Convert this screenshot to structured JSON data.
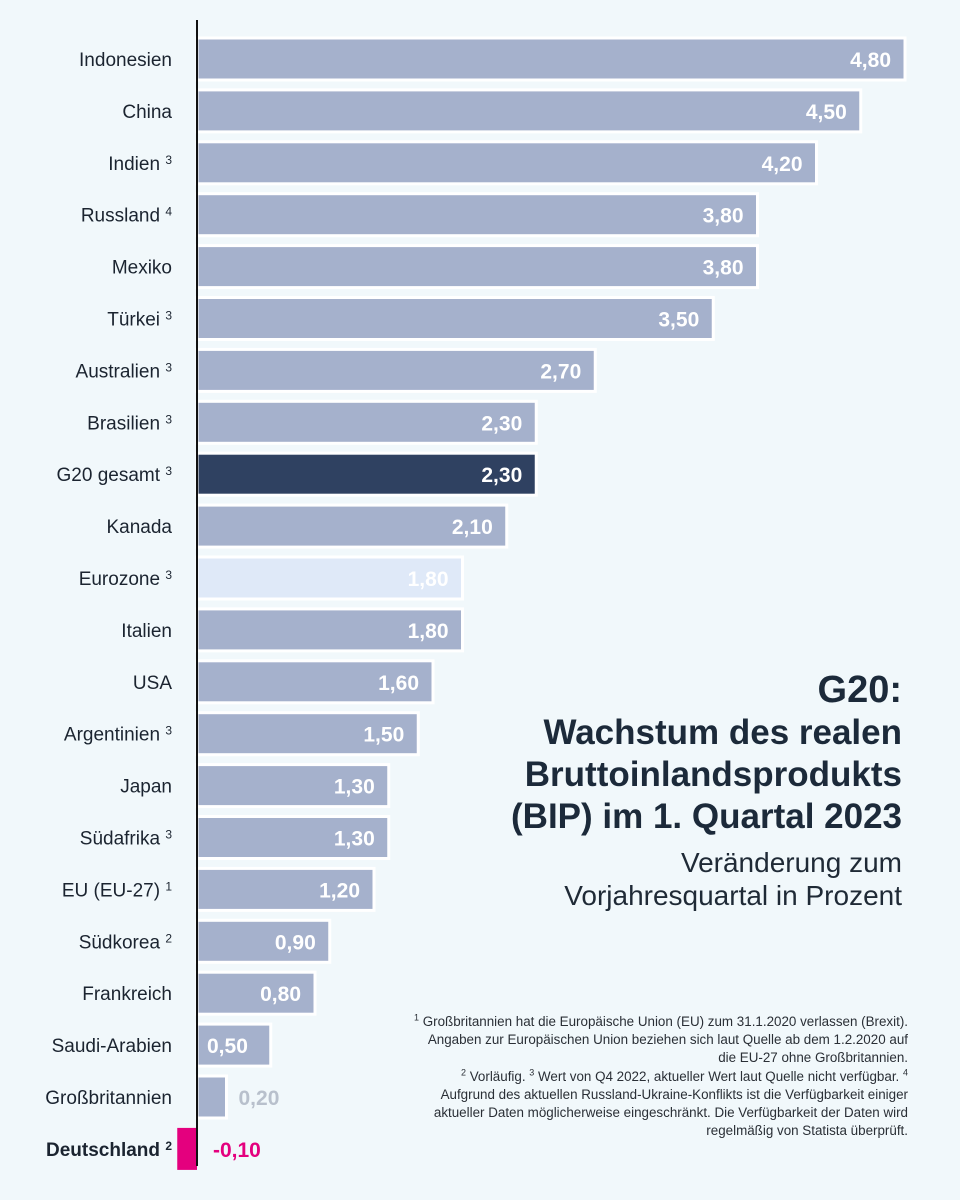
{
  "chart_data": {
    "type": "bar",
    "orientation": "horizontal",
    "categories": [
      "Indonesien",
      "China",
      "Indien",
      "Russland",
      "Mexiko",
      "Türkei",
      "Australien",
      "Brasilien",
      "G20 gesamt",
      "Kanada",
      "Eurozone",
      "Italien",
      "USA",
      "Argentinien",
      "Japan",
      "Südafrika",
      "EU (EU-27)",
      "Südkorea",
      "Frankreich",
      "Saudi-Arabien",
      "Großbritannien",
      "Deutschland"
    ],
    "footnote_marks": [
      "",
      "",
      "3",
      "4",
      "",
      "3",
      "3",
      "3",
      "3",
      "",
      "3",
      "",
      "",
      "3",
      "",
      "3",
      "1",
      "2",
      "",
      "",
      "",
      "2"
    ],
    "values": [
      4.8,
      4.5,
      4.2,
      3.8,
      3.8,
      3.5,
      2.7,
      2.3,
      2.3,
      2.1,
      1.8,
      1.8,
      1.6,
      1.5,
      1.3,
      1.3,
      1.2,
      0.9,
      0.8,
      0.5,
      0.2,
      -0.1
    ],
    "value_labels": [
      "4,80",
      "4,50",
      "4,20",
      "3,80",
      "3,80",
      "3,50",
      "2,70",
      "2,30",
      "2,30",
      "2,10",
      "1,80",
      "1,80",
      "1,60",
      "1,50",
      "1,30",
      "1,30",
      "1,20",
      "0,90",
      "0,80",
      "0,50",
      "0,20",
      "-0,10"
    ],
    "highlight": {
      "G20 gesamt": "dark",
      "Eurozone": "light",
      "Deutschland": "negative"
    },
    "colors": {
      "bar": "#a5b1cc",
      "bar_border": "#ffffff",
      "dark": "#2f4161",
      "light": "#dfe9f8",
      "negative": "#e4007e",
      "axis": "#111111"
    },
    "xlim": [
      -0.1,
      4.8
    ],
    "grid": false,
    "legend": "none"
  },
  "title": {
    "line1": "G20:",
    "line2": "Wachstum des realen",
    "line3": "Bruttoinlandsprodukts",
    "line4": "(BIP) im 1. Quartal 2023"
  },
  "subtitle": {
    "line1": "Veränderung zum",
    "line2": "Vorjahresquartal in Prozent"
  },
  "footnotes": [
    {
      "mark": "1",
      "text": " Großbritannien hat die Europäische Union (EU) zum 31.1.2020 verlassen (Brexit). Angaben zur Europäischen Union beziehen sich laut Quelle ab dem 1.2.2020 auf die EU-27 ohne Großbritannien."
    },
    {
      "mark": "2",
      "text": " Vorläufig. "
    },
    {
      "mark": "3",
      "text": " Wert von Q4 2022, aktueller Wert laut Quelle nicht verfügbar. "
    },
    {
      "mark": "4",
      "text": " Aufgrund des aktuellen Russland-Ukraine-Konflikts ist die Verfügbarkeit einiger aktueller Daten möglicherweise eingeschränkt. Die Verfügbarkeit der Daten wird regelmäßig von Statista überprüft."
    }
  ]
}
